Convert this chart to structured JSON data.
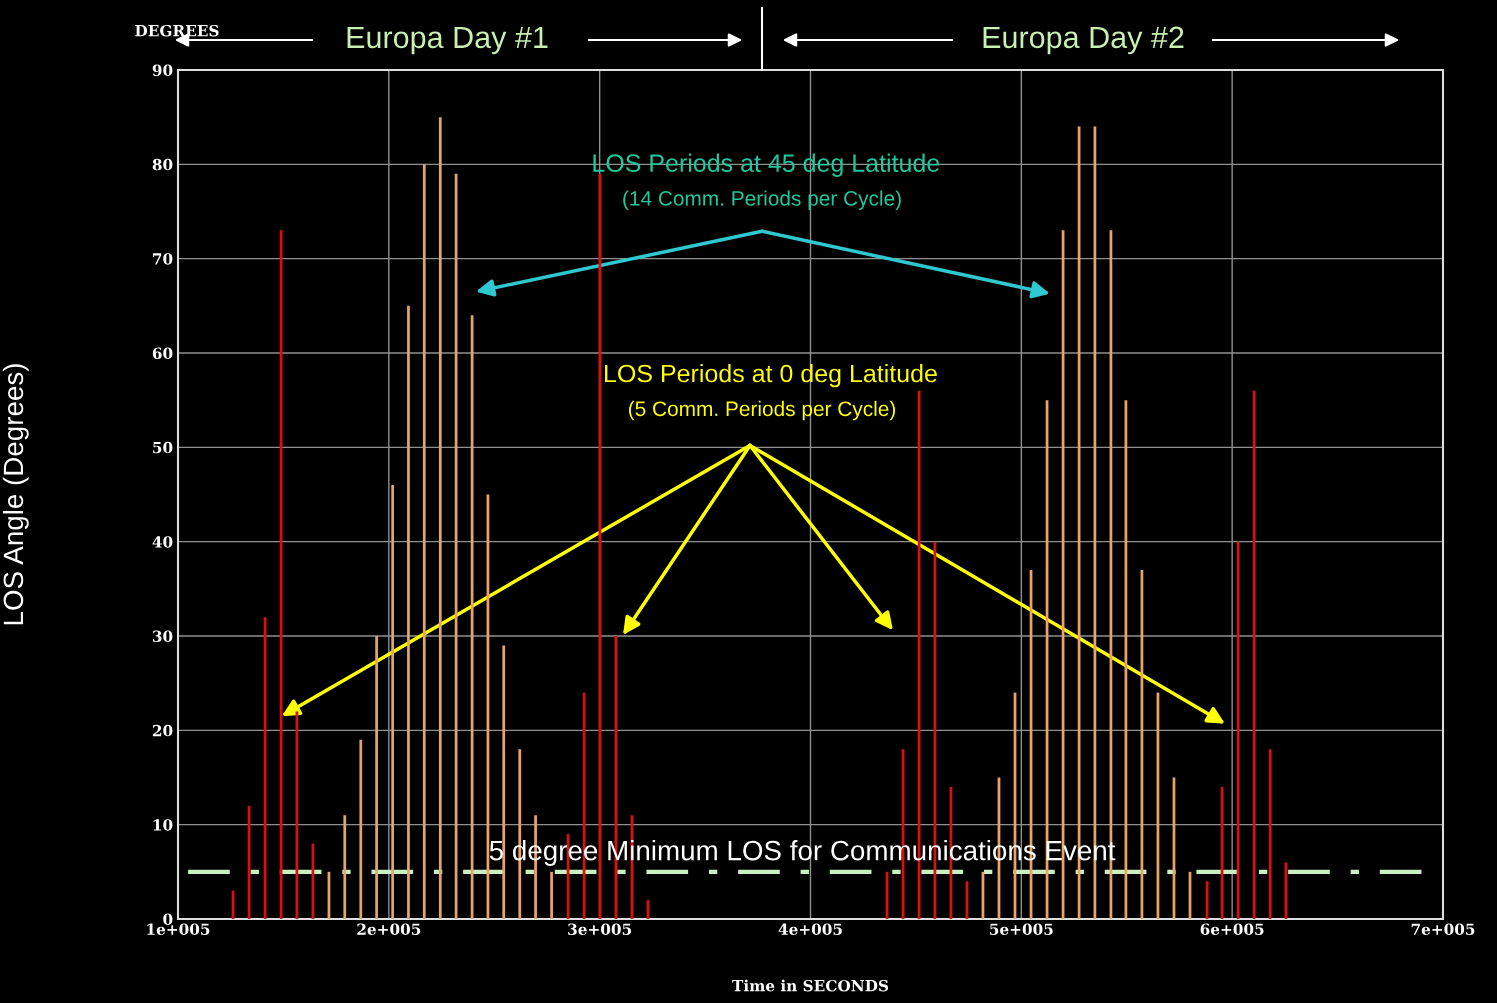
{
  "chart_data": {
    "type": "bar",
    "xlabel": "Time in SECONDS",
    "ylabel": "LOS Angle (Degrees)",
    "series": [
      {
        "color": "#d81010",
        "x": [
          126100,
          133700,
          141300,
          148900,
          156400,
          164000,
          285000,
          292600,
          300100,
          307700,
          315300,
          322900,
          436300,
          443900,
          451500,
          459000,
          466600,
          474200,
          588100,
          595200,
          602800,
          610400,
          618000,
          625500
        ],
        "values": [
          3,
          12,
          32,
          73,
          22,
          8,
          9,
          24,
          79,
          30,
          11,
          2,
          5,
          18,
          56,
          40,
          14,
          4,
          4,
          14,
          40,
          56,
          18,
          6
        ]
      },
      {
        "color": "#e8a468",
        "x": [
          171600,
          179100,
          186700,
          194200,
          201800,
          209300,
          216800,
          224400,
          231900,
          239500,
          247000,
          254500,
          262100,
          269600,
          277200,
          481800,
          489400,
          497000,
          504600,
          512200,
          519800,
          527400,
          534900,
          542500,
          549600,
          557200,
          564800,
          572400,
          580000
        ],
        "values": [
          5,
          11,
          19,
          30,
          46,
          65,
          80,
          85,
          79,
          64,
          45,
          29,
          18,
          11,
          5,
          5,
          15,
          24,
          37,
          55,
          73,
          84,
          84,
          73,
          55,
          37,
          24,
          15,
          5
        ]
      }
    ],
    "xlim": [
      100000,
      700000
    ],
    "xticks": [
      {
        "value": 100000,
        "label": "1e+005"
      },
      {
        "value": 200000,
        "label": "2e+005"
      },
      {
        "value": 300000,
        "label": "3e+005"
      },
      {
        "value": 400000,
        "label": "4e+005"
      },
      {
        "value": 500000,
        "label": "5e+005"
      },
      {
        "value": 600000,
        "label": "6e+005"
      },
      {
        "value": 700000,
        "label": "7e+005"
      }
    ],
    "ylim": [
      0,
      90
    ],
    "yticks": [
      0,
      10,
      20,
      30,
      40,
      50,
      60,
      70,
      80,
      90
    ],
    "grid": true,
    "ref_lines": [
      {
        "axis": "y",
        "value": 5,
        "label": "5 degree Minimum LOS for Communications Event",
        "color": "#c8f0c0",
        "line_style": "dashed"
      }
    ],
    "annotations": [
      "DEGREES",
      "Europa Day #1",
      "Europa Day #2",
      "LOS Periods at 45 deg Latitude",
      "(14 Comm. Periods per Cycle)",
      "LOS Periods at 0 deg Latitude",
      "(5 Comm. Periods per Cycle)"
    ]
  }
}
